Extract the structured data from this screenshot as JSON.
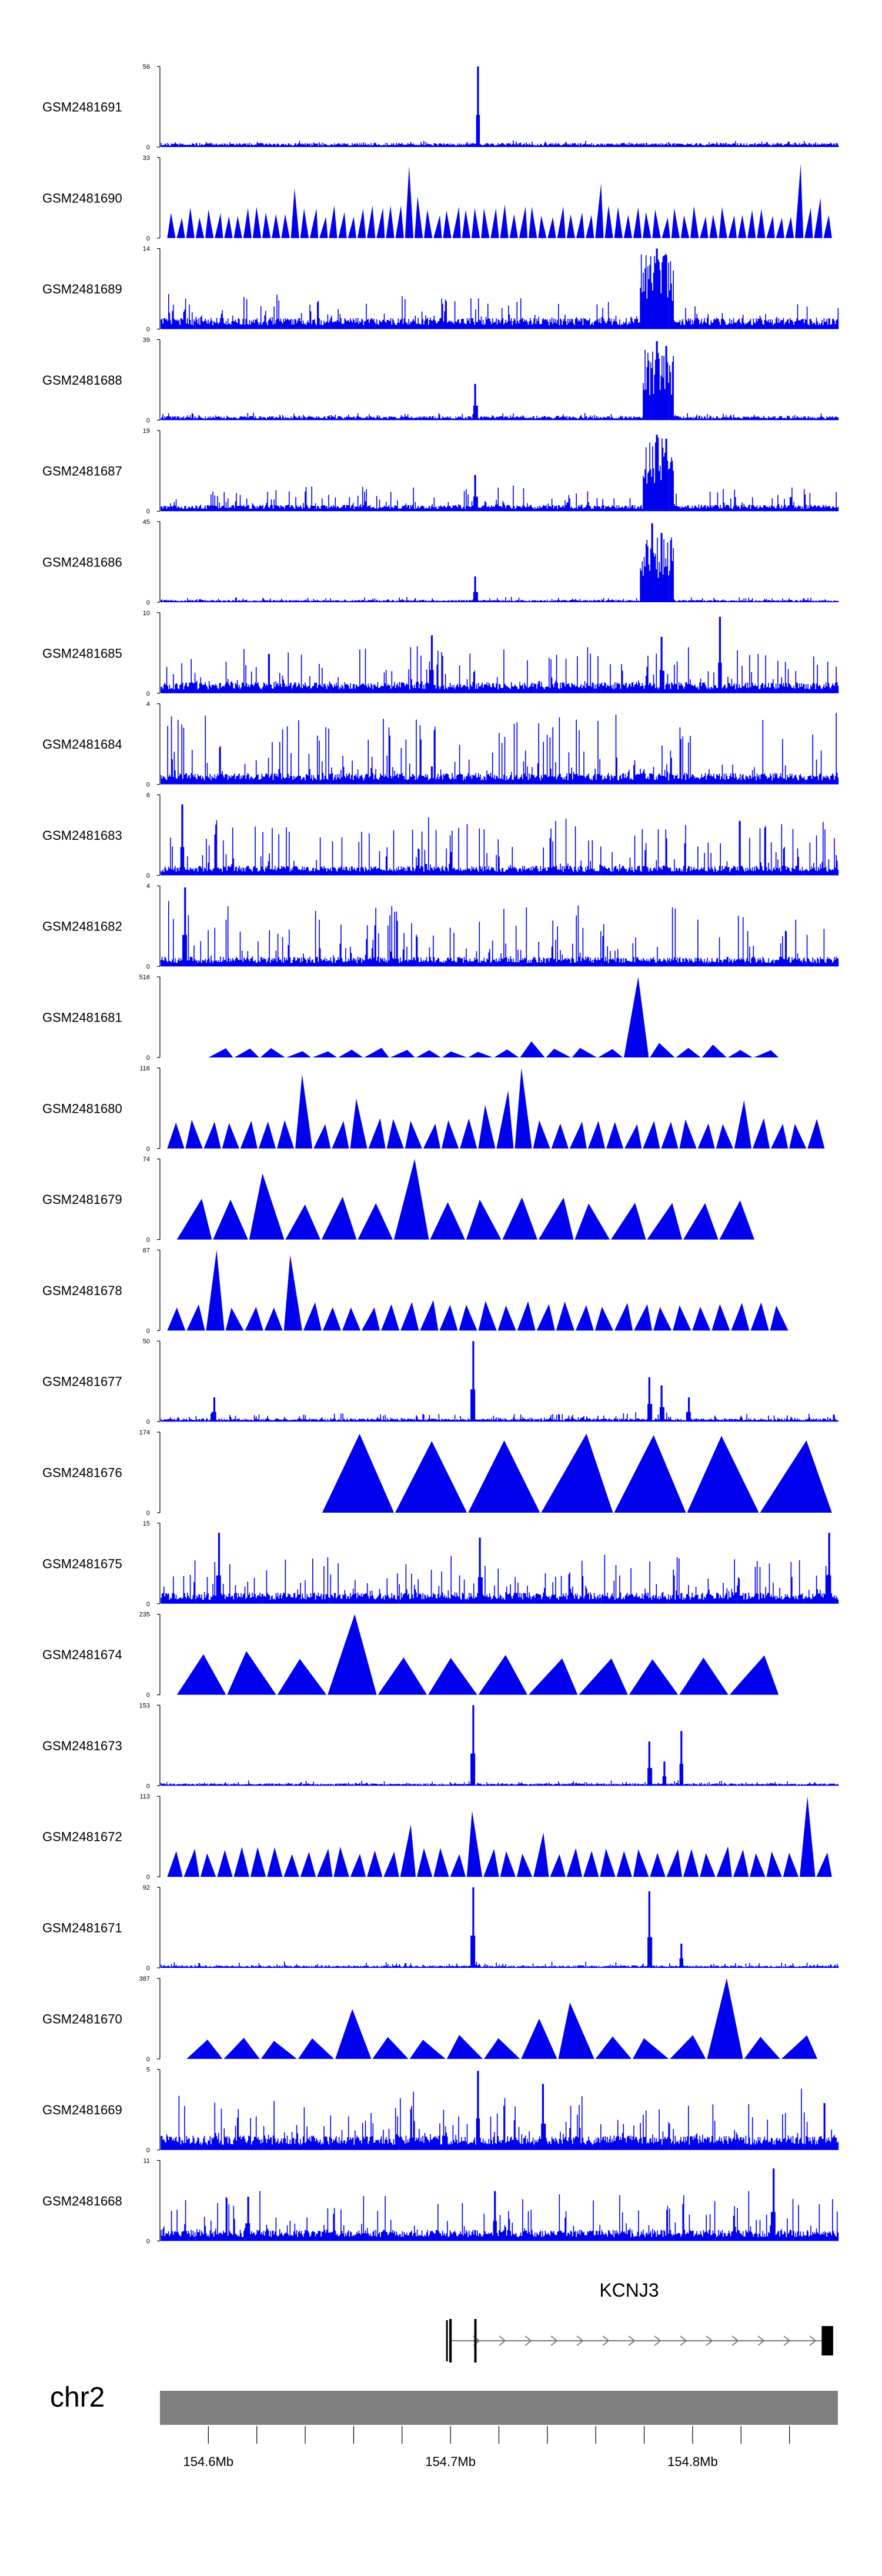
{
  "chart_data": {
    "type": "area",
    "genome_range_mb": [
      154.58,
      154.86
    ],
    "tracks": [
      {
        "name": "GSM2481691",
        "ymax": "56",
        "ymin": "0",
        "style": "spike",
        "base": 0.05,
        "noise": 0.04,
        "peaks": [
          [
            154.711,
            1.0
          ]
        ]
      },
      {
        "name": "GSM2481690",
        "ymax": "33",
        "ymin": "0",
        "style": "tri",
        "count": 70,
        "start": 154.583,
        "end": 154.858,
        "hmin": 0.25,
        "hmax": 0.42,
        "peaks": [
          [
            154.637,
            0.62
          ],
          [
            154.682,
            0.9
          ],
          [
            154.688,
            0.52
          ],
          [
            154.76,
            0.68
          ],
          [
            154.843,
            0.92
          ],
          [
            154.851,
            0.5
          ]
        ]
      },
      {
        "name": "GSM2481689",
        "ymax": "14",
        "ymin": "0",
        "style": "noise",
        "base": 0.14,
        "noise": 0.32,
        "cluster": [
          154.778,
          154.792,
          0.95
        ],
        "peaks": [
          [
            154.785,
            1.0
          ],
          [
            154.789,
            0.92
          ]
        ]
      },
      {
        "name": "GSM2481688",
        "ymax": "39",
        "ymin": "0",
        "style": "spike",
        "base": 0.05,
        "noise": 0.05,
        "cluster": [
          154.779,
          154.792,
          0.88
        ],
        "peaks": [
          [
            154.71,
            0.45
          ],
          [
            154.785,
            0.98
          ],
          [
            154.789,
            0.92
          ]
        ]
      },
      {
        "name": "GSM2481687",
        "ymax": "19",
        "ymin": "0",
        "style": "noise",
        "base": 0.08,
        "noise": 0.24,
        "cluster": [
          154.779,
          154.792,
          0.92
        ],
        "peaks": [
          [
            154.71,
            0.45
          ],
          [
            154.785,
            0.95
          ],
          [
            154.789,
            0.9
          ]
        ]
      },
      {
        "name": "GSM2481686",
        "ymax": "45",
        "ymin": "0",
        "style": "spike",
        "base": 0.03,
        "noise": 0.04,
        "cluster": [
          154.778,
          154.792,
          0.82
        ],
        "peaks": [
          [
            154.71,
            0.32
          ],
          [
            154.783,
            0.98
          ],
          [
            154.787,
            0.86
          ]
        ]
      },
      {
        "name": "GSM2481685",
        "ymax": "10",
        "ymin": "0",
        "style": "noise",
        "base": 0.14,
        "noise": 0.48,
        "peaks": [
          [
            154.692,
            0.72
          ],
          [
            154.811,
            0.95
          ],
          [
            154.787,
            0.7
          ]
        ]
      },
      {
        "name": "GSM2481684",
        "ymax": "4",
        "ymin": "0",
        "style": "noise",
        "base": 0.14,
        "noise": 0.78
      },
      {
        "name": "GSM2481683",
        "ymax": "6",
        "ymin": "0",
        "style": "noise",
        "base": 0.12,
        "noise": 0.66,
        "peaks": [
          [
            154.589,
            0.88
          ]
        ]
      },
      {
        "name": "GSM2481682",
        "ymax": "4",
        "ymin": "0",
        "style": "noise",
        "base": 0.12,
        "noise": 0.72,
        "peaks": [
          [
            154.59,
            0.98
          ]
        ]
      },
      {
        "name": "GSM2481681",
        "ymax": "516",
        "ymin": "0",
        "style": "tri",
        "count": 22,
        "start": 154.6,
        "end": 154.836,
        "hmin": 0.06,
        "hmax": 0.12,
        "peaks": [
          [
            154.735,
            0.2
          ],
          [
            154.782,
            1.0
          ],
          [
            154.787,
            0.18
          ],
          [
            154.808,
            0.16
          ]
        ]
      },
      {
        "name": "GSM2481680",
        "ymax": "116",
        "ymin": "0",
        "style": "tri",
        "count": 36,
        "start": 154.583,
        "end": 154.855,
        "hmin": 0.3,
        "hmax": 0.38,
        "peaks": [
          [
            154.641,
            0.92
          ],
          [
            154.664,
            0.62
          ],
          [
            154.716,
            0.54
          ],
          [
            154.724,
            0.72
          ],
          [
            154.73,
            1.0
          ],
          [
            154.822,
            0.6
          ]
        ]
      },
      {
        "name": "GSM2481679",
        "ymax": "74",
        "ymin": "0",
        "style": "tri",
        "count": 16,
        "start": 154.587,
        "end": 154.826,
        "hmin": 0.42,
        "hmax": 0.55,
        "peaks": [
          [
            154.617,
            0.82
          ],
          [
            154.682,
            1.0
          ]
        ]
      },
      {
        "name": "GSM2481678",
        "ymax": "87",
        "ymin": "0",
        "style": "tri",
        "count": 32,
        "start": 154.583,
        "end": 154.84,
        "hmin": 0.28,
        "hmax": 0.38,
        "peaks": [
          [
            154.601,
            1.0
          ],
          [
            154.638,
            0.94
          ]
        ]
      },
      {
        "name": "GSM2481677",
        "ymax": "50",
        "ymin": "0",
        "style": "spike",
        "base": 0.04,
        "noise": 0.08,
        "peaks": [
          [
            154.709,
            1.0
          ],
          [
            154.782,
            0.55
          ],
          [
            154.787,
            0.45
          ],
          [
            154.798,
            0.3
          ],
          [
            154.602,
            0.3
          ]
        ]
      },
      {
        "name": "GSM2481676",
        "ymax": "174",
        "ymin": "0",
        "style": "tri",
        "count": 7,
        "start": 154.647,
        "end": 154.858,
        "hmin": 0.86,
        "hmax": 1.0,
        "peaks": []
      },
      {
        "name": "GSM2481675",
        "ymax": "15",
        "ymin": "0",
        "style": "noise",
        "base": 0.14,
        "noise": 0.5,
        "peaks": [
          [
            154.604,
            0.88
          ],
          [
            154.712,
            0.82
          ],
          [
            154.856,
            0.88
          ]
        ]
      },
      {
        "name": "GSM2481674",
        "ymax": "235",
        "ymin": "0",
        "style": "tri",
        "count": 12,
        "start": 154.587,
        "end": 154.836,
        "hmin": 0.42,
        "hmax": 0.55,
        "peaks": [
          [
            154.657,
            0.95
          ],
          [
            154.67,
            1.0
          ]
        ]
      },
      {
        "name": "GSM2481673",
        "ymax": "153",
        "ymin": "0",
        "style": "spike",
        "base": 0.03,
        "noise": 0.04,
        "peaks": [
          [
            154.709,
            1.0
          ],
          [
            154.782,
            0.55
          ],
          [
            154.795,
            0.68
          ],
          [
            154.788,
            0.3
          ]
        ]
      },
      {
        "name": "GSM2481672",
        "ymax": "113",
        "ymin": "0",
        "style": "tri",
        "count": 40,
        "start": 154.583,
        "end": 154.858,
        "hmin": 0.28,
        "hmax": 0.38,
        "peaks": [
          [
            154.686,
            0.65
          ],
          [
            154.712,
            0.82
          ],
          [
            154.739,
            0.55
          ],
          [
            154.85,
            1.0
          ]
        ]
      },
      {
        "name": "GSM2481671",
        "ymax": "92",
        "ymin": "0",
        "style": "spike",
        "base": 0.03,
        "noise": 0.05,
        "peaks": [
          [
            154.709,
            1.0
          ],
          [
            154.782,
            0.95
          ],
          [
            154.795,
            0.3
          ]
        ]
      },
      {
        "name": "GSM2481670",
        "ymax": "387",
        "ymin": "0",
        "style": "tri",
        "count": 17,
        "start": 154.591,
        "end": 154.852,
        "hmin": 0.22,
        "hmax": 0.32,
        "peaks": [
          [
            154.661,
            0.62
          ],
          [
            154.733,
            0.5
          ],
          [
            154.748,
            0.7
          ],
          [
            154.818,
            1.0
          ]
        ]
      },
      {
        "name": "GSM2481669",
        "ymax": "5",
        "ymin": "0",
        "style": "noise",
        "base": 0.18,
        "noise": 0.6,
        "peaks": [
          [
            154.711,
            0.98
          ],
          [
            154.738,
            0.82
          ]
        ]
      },
      {
        "name": "GSM2481668",
        "ymax": "11",
        "ymin": "0",
        "style": "noise",
        "base": 0.14,
        "noise": 0.5,
        "peaks": [
          [
            154.833,
            0.9
          ],
          [
            154.718,
            0.62
          ],
          [
            154.616,
            0.55
          ]
        ]
      }
    ],
    "gene": {
      "name": "KCNJ3",
      "start_mb": 154.7,
      "end_mb": 154.858,
      "exons": [
        [
          154.6995,
          154.7005
        ],
        [
          154.7098,
          154.7104
        ],
        [
          154.8533,
          154.858
        ]
      ],
      "strand": "+"
    },
    "chromosome": "chr2",
    "ticks_mb": [
      154.6,
      154.62,
      154.64,
      154.66,
      154.68,
      154.7,
      154.72,
      154.74,
      154.76,
      154.78,
      154.8,
      154.82,
      154.84
    ],
    "tick_labels": [
      {
        "mb": 154.6,
        "label": "154.6Mb"
      },
      {
        "mb": 154.7,
        "label": "154.7Mb"
      },
      {
        "mb": 154.8,
        "label": "154.8Mb"
      }
    ]
  },
  "colors": {
    "signal": "#0000ee",
    "axis": "#000000",
    "chrom_bar": "#808080",
    "gene": "#000000",
    "intron": "#7a7a7a"
  }
}
